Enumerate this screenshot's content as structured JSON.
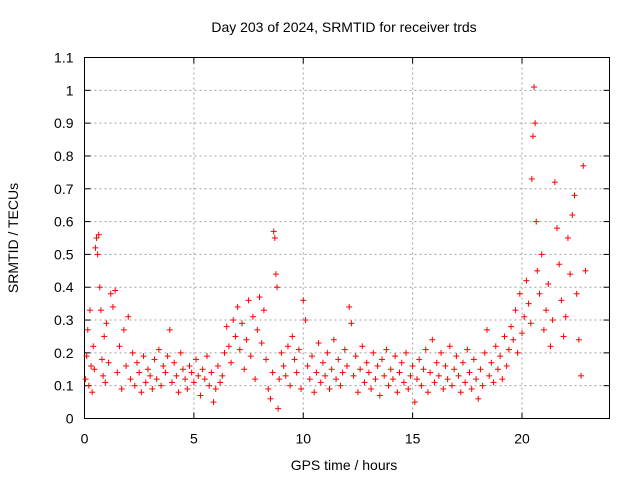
{
  "chart_data": {
    "type": "scatter",
    "title": "Day 203 of 2024, SRMTID for receiver trds",
    "xlabel": "GPS time / hours",
    "ylabel": "SRMTID / TECUs",
    "xlim": [
      0,
      24
    ],
    "ylim": [
      0,
      1.1
    ],
    "xticks": [
      0,
      5,
      10,
      15,
      20
    ],
    "xtick_labels": [
      "0",
      "5",
      "10",
      "15",
      "20"
    ],
    "yticks": [
      0,
      0.1,
      0.2,
      0.3,
      0.4,
      0.5,
      0.6,
      0.7,
      0.8,
      0.9,
      1,
      1.1
    ],
    "ytick_labels": [
      "0",
      "0.1",
      "0.2",
      "0.3",
      "0.4",
      "0.5",
      "0.6",
      "0.7",
      "0.8",
      "0.9",
      "1",
      "1.1"
    ],
    "grid": true,
    "marker": "+",
    "color": "#ff0000",
    "series": [
      {
        "name": "SRMTID",
        "points": [
          [
            0.05,
            0.12
          ],
          [
            0.1,
            0.19
          ],
          [
            0.15,
            0.27
          ],
          [
            0.2,
            0.1
          ],
          [
            0.25,
            0.33
          ],
          [
            0.3,
            0.16
          ],
          [
            0.35,
            0.08
          ],
          [
            0.4,
            0.22
          ],
          [
            0.45,
            0.15
          ],
          [
            0.5,
            0.52
          ],
          [
            0.55,
            0.55
          ],
          [
            0.6,
            0.5
          ],
          [
            0.65,
            0.56
          ],
          [
            0.7,
            0.4
          ],
          [
            0.75,
            0.33
          ],
          [
            0.8,
            0.18
          ],
          [
            0.85,
            0.13
          ],
          [
            0.9,
            0.25
          ],
          [
            0.95,
            0.11
          ],
          [
            1.0,
            0.29
          ],
          [
            1.1,
            0.17
          ],
          [
            1.2,
            0.38
          ],
          [
            1.3,
            0.34
          ],
          [
            1.4,
            0.39
          ],
          [
            1.5,
            0.14
          ],
          [
            1.6,
            0.22
          ],
          [
            1.7,
            0.09
          ],
          [
            1.8,
            0.27
          ],
          [
            1.9,
            0.16
          ],
          [
            2.0,
            0.31
          ],
          [
            2.1,
            0.12
          ],
          [
            2.2,
            0.2
          ],
          [
            2.3,
            0.1
          ],
          [
            2.4,
            0.17
          ],
          [
            2.5,
            0.14
          ],
          [
            2.6,
            0.08
          ],
          [
            2.7,
            0.19
          ],
          [
            2.8,
            0.11
          ],
          [
            2.9,
            0.15
          ],
          [
            3.0,
            0.13
          ],
          [
            3.1,
            0.09
          ],
          [
            3.2,
            0.18
          ],
          [
            3.3,
            0.12
          ],
          [
            3.4,
            0.21
          ],
          [
            3.5,
            0.1
          ],
          [
            3.6,
            0.16
          ],
          [
            3.7,
            0.14
          ],
          [
            3.8,
            0.19
          ],
          [
            3.9,
            0.27
          ],
          [
            4.0,
            0.11
          ],
          [
            4.1,
            0.17
          ],
          [
            4.2,
            0.13
          ],
          [
            4.3,
            0.08
          ],
          [
            4.4,
            0.2
          ],
          [
            4.5,
            0.15
          ],
          [
            4.6,
            0.12
          ],
          [
            4.7,
            0.09
          ],
          [
            4.8,
            0.16
          ],
          [
            4.9,
            0.14
          ],
          [
            5.0,
            0.11
          ],
          [
            5.1,
            0.18
          ],
          [
            5.2,
            0.13
          ],
          [
            5.3,
            0.07
          ],
          [
            5.4,
            0.15
          ],
          [
            5.5,
            0.12
          ],
          [
            5.6,
            0.19
          ],
          [
            5.7,
            0.1
          ],
          [
            5.8,
            0.14
          ],
          [
            5.9,
            0.05
          ],
          [
            6.0,
            0.09
          ],
          [
            6.1,
            0.16
          ],
          [
            6.2,
            0.11
          ],
          [
            6.3,
            0.13
          ],
          [
            6.4,
            0.2
          ],
          [
            6.5,
            0.28
          ],
          [
            6.6,
            0.22
          ],
          [
            6.7,
            0.17
          ],
          [
            6.8,
            0.3
          ],
          [
            6.9,
            0.25
          ],
          [
            7.0,
            0.34
          ],
          [
            7.1,
            0.21
          ],
          [
            7.2,
            0.29
          ],
          [
            7.3,
            0.15
          ],
          [
            7.4,
            0.24
          ],
          [
            7.5,
            0.36
          ],
          [
            7.6,
            0.19
          ],
          [
            7.7,
            0.31
          ],
          [
            7.8,
            0.12
          ],
          [
            7.9,
            0.27
          ],
          [
            8.0,
            0.37
          ],
          [
            8.1,
            0.23
          ],
          [
            8.2,
            0.33
          ],
          [
            8.3,
            0.18
          ],
          [
            8.4,
            0.09
          ],
          [
            8.5,
            0.06
          ],
          [
            8.6,
            0.14
          ],
          [
            8.65,
            0.57
          ],
          [
            8.7,
            0.55
          ],
          [
            8.75,
            0.44
          ],
          [
            8.8,
            0.4
          ],
          [
            8.85,
            0.03
          ],
          [
            8.9,
            0.12
          ],
          [
            9.0,
            0.2
          ],
          [
            9.1,
            0.16
          ],
          [
            9.2,
            0.13
          ],
          [
            9.3,
            0.22
          ],
          [
            9.4,
            0.1
          ],
          [
            9.5,
            0.25
          ],
          [
            9.6,
            0.18
          ],
          [
            9.7,
            0.14
          ],
          [
            9.8,
            0.21
          ],
          [
            9.9,
            0.09
          ],
          [
            10.0,
            0.36
          ],
          [
            10.1,
            0.3
          ],
          [
            10.2,
            0.16
          ],
          [
            10.3,
            0.12
          ],
          [
            10.4,
            0.19
          ],
          [
            10.5,
            0.08
          ],
          [
            10.6,
            0.14
          ],
          [
            10.7,
            0.23
          ],
          [
            10.8,
            0.11
          ],
          [
            10.9,
            0.17
          ],
          [
            11.0,
            0.13
          ],
          [
            11.1,
            0.2
          ],
          [
            11.2,
            0.09
          ],
          [
            11.3,
            0.15
          ],
          [
            11.4,
            0.24
          ],
          [
            11.5,
            0.12
          ],
          [
            11.6,
            0.18
          ],
          [
            11.7,
            0.1
          ],
          [
            11.8,
            0.14
          ],
          [
            11.9,
            0.21
          ],
          [
            12.0,
            0.16
          ],
          [
            12.1,
            0.34
          ],
          [
            12.2,
            0.29
          ],
          [
            12.3,
            0.13
          ],
          [
            12.4,
            0.19
          ],
          [
            12.5,
            0.08
          ],
          [
            12.6,
            0.15
          ],
          [
            12.7,
            0.22
          ],
          [
            12.8,
            0.11
          ],
          [
            12.9,
            0.17
          ],
          [
            13.0,
            0.14
          ],
          [
            13.1,
            0.09
          ],
          [
            13.2,
            0.2
          ],
          [
            13.3,
            0.12
          ],
          [
            13.4,
            0.16
          ],
          [
            13.5,
            0.07
          ],
          [
            13.6,
            0.18
          ],
          [
            13.7,
            0.13
          ],
          [
            13.8,
            0.21
          ],
          [
            13.9,
            0.1
          ],
          [
            14.0,
            0.15
          ],
          [
            14.1,
            0.12
          ],
          [
            14.2,
            0.19
          ],
          [
            14.3,
            0.08
          ],
          [
            14.4,
            0.14
          ],
          [
            14.5,
            0.17
          ],
          [
            14.6,
            0.11
          ],
          [
            14.7,
            0.2
          ],
          [
            14.8,
            0.09
          ],
          [
            14.9,
            0.13
          ],
          [
            15.0,
            0.16
          ],
          [
            15.1,
            0.05
          ],
          [
            15.2,
            0.12
          ],
          [
            15.3,
            0.18
          ],
          [
            15.4,
            0.1
          ],
          [
            15.5,
            0.15
          ],
          [
            15.6,
            0.21
          ],
          [
            15.7,
            0.08
          ],
          [
            15.8,
            0.14
          ],
          [
            15.9,
            0.24
          ],
          [
            16.0,
            0.11
          ],
          [
            16.1,
            0.17
          ],
          [
            16.2,
            0.13
          ],
          [
            16.3,
            0.2
          ],
          [
            16.4,
            0.09
          ],
          [
            16.5,
            0.16
          ],
          [
            16.6,
            0.12
          ],
          [
            16.7,
            0.22
          ],
          [
            16.8,
            0.1
          ],
          [
            16.9,
            0.15
          ],
          [
            17.0,
            0.19
          ],
          [
            17.1,
            0.13
          ],
          [
            17.2,
            0.08
          ],
          [
            17.3,
            0.17
          ],
          [
            17.4,
            0.11
          ],
          [
            17.5,
            0.21
          ],
          [
            17.6,
            0.14
          ],
          [
            17.7,
            0.09
          ],
          [
            17.8,
            0.18
          ],
          [
            17.9,
            0.12
          ],
          [
            18.0,
            0.06
          ],
          [
            18.1,
            0.15
          ],
          [
            18.2,
            0.1
          ],
          [
            18.3,
            0.2
          ],
          [
            18.4,
            0.27
          ],
          [
            18.5,
            0.13
          ],
          [
            18.6,
            0.17
          ],
          [
            18.7,
            0.11
          ],
          [
            18.8,
            0.22
          ],
          [
            18.9,
            0.15
          ],
          [
            19.0,
            0.19
          ],
          [
            19.1,
            0.12
          ],
          [
            19.2,
            0.25
          ],
          [
            19.3,
            0.16
          ],
          [
            19.4,
            0.21
          ],
          [
            19.5,
            0.28
          ],
          [
            19.6,
            0.24
          ],
          [
            19.7,
            0.33
          ],
          [
            19.8,
            0.2
          ],
          [
            19.9,
            0.38
          ],
          [
            20.0,
            0.26
          ],
          [
            20.1,
            0.31
          ],
          [
            20.2,
            0.42
          ],
          [
            20.3,
            0.35
          ],
          [
            20.4,
            0.29
          ],
          [
            20.45,
            0.73
          ],
          [
            20.5,
            0.86
          ],
          [
            20.55,
            1.01
          ],
          [
            20.6,
            0.9
          ],
          [
            20.65,
            0.6
          ],
          [
            20.7,
            0.45
          ],
          [
            20.8,
            0.38
          ],
          [
            20.9,
            0.5
          ],
          [
            21.0,
            0.27
          ],
          [
            21.1,
            0.33
          ],
          [
            21.2,
            0.41
          ],
          [
            21.3,
            0.22
          ],
          [
            21.4,
            0.3
          ],
          [
            21.5,
            0.72
          ],
          [
            21.6,
            0.58
          ],
          [
            21.7,
            0.47
          ],
          [
            21.8,
            0.36
          ],
          [
            21.9,
            0.25
          ],
          [
            22.0,
            0.31
          ],
          [
            22.1,
            0.55
          ],
          [
            22.2,
            0.44
          ],
          [
            22.3,
            0.62
          ],
          [
            22.4,
            0.68
          ],
          [
            22.5,
            0.38
          ],
          [
            22.6,
            0.24
          ],
          [
            22.7,
            0.13
          ],
          [
            22.8,
            0.77
          ],
          [
            22.9,
            0.45
          ]
        ]
      }
    ]
  }
}
